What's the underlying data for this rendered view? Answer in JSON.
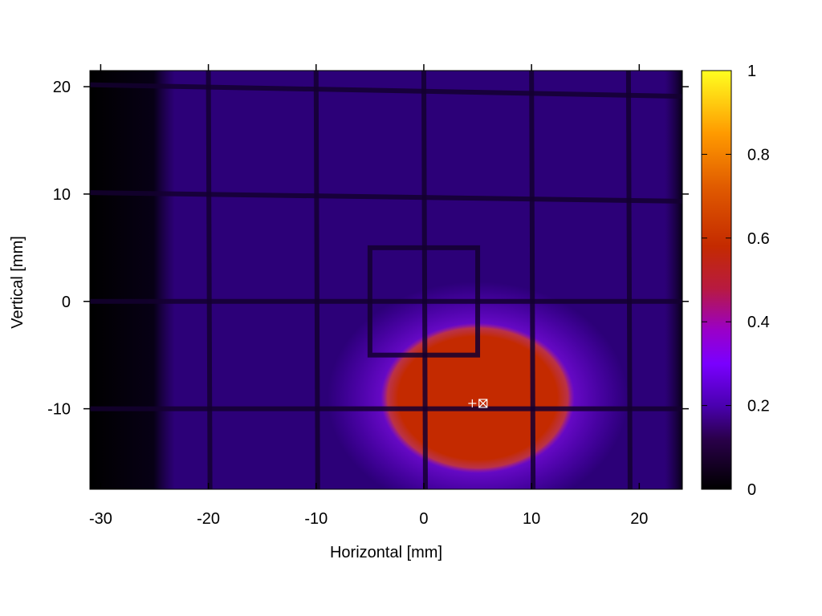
{
  "chart_data": {
    "type": "heatmap",
    "xlabel": "Horizontal [mm]",
    "ylabel": "Vertical [mm]",
    "xlim": [
      -31,
      24
    ],
    "ylim": [
      -17.5,
      21.5
    ],
    "x_ticks": [
      -30,
      -20,
      -10,
      0,
      10,
      20
    ],
    "y_ticks": [
      -10,
      0,
      10,
      20
    ],
    "colorbar": {
      "range": [
        0,
        1
      ],
      "ticks": [
        0,
        0.2,
        0.4,
        0.6,
        0.8,
        1
      ],
      "tick_labels": [
        "0",
        "0.2",
        "0.4",
        "0.6",
        "0.8",
        "1"
      ],
      "palette": [
        "#000000",
        "#3a0070",
        "#7a00ff",
        "#c42a00",
        "#ff8800",
        "#ffff20"
      ]
    },
    "background_intensity": 0.18,
    "edge_dark_x_below": -24,
    "grid_lines_vertical_x": [
      -20,
      -10,
      0,
      10,
      19
    ],
    "grid_lines_horizontal_y": [
      20,
      10,
      0,
      -10
    ],
    "inner_square": {
      "x_min": -5,
      "x_max": 5,
      "y_min": -5,
      "y_max": 5
    },
    "beam_spot": {
      "center_x": 5,
      "center_y": -9,
      "half_width_x": 9,
      "half_height_y": 7,
      "peak_intensity": 0.5
    },
    "markers": [
      {
        "type": "plus",
        "x": 4.5,
        "y": -9.5
      },
      {
        "type": "box-cross",
        "x": 5.5,
        "y": -9.5
      }
    ],
    "grid": false,
    "legend": "none"
  }
}
